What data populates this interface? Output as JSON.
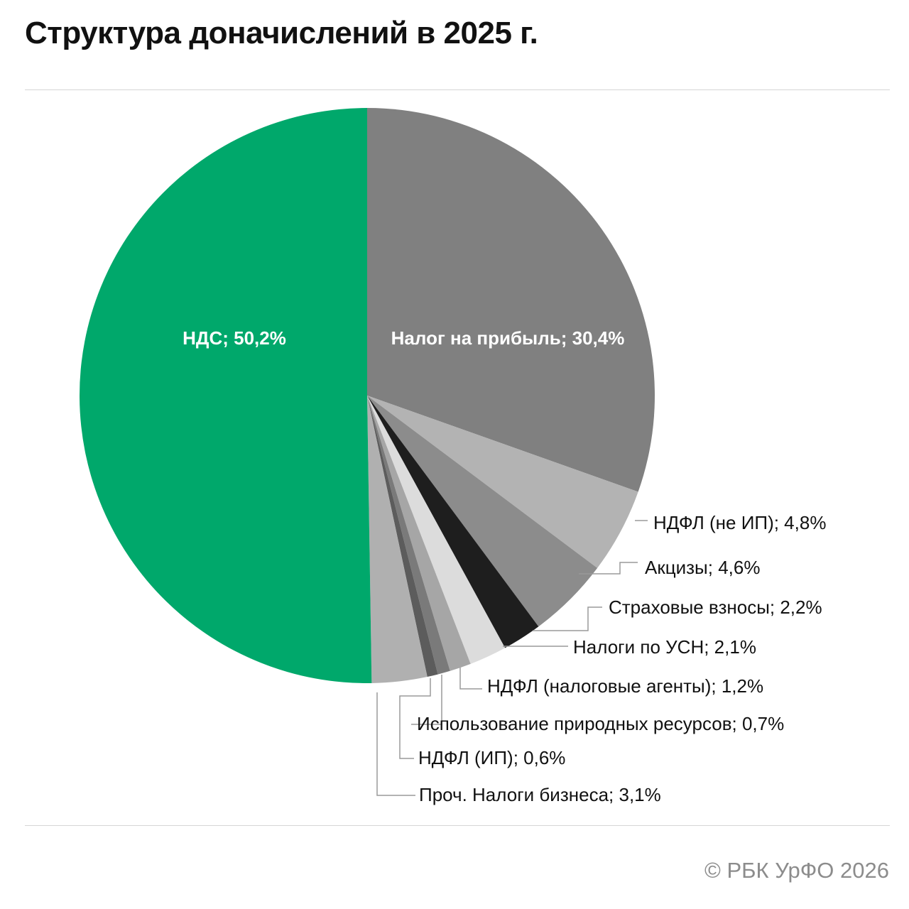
{
  "title": "Структура доначислений в 2025 г.",
  "copyright": "© РБК УрФО 2026",
  "chart_data": {
    "type": "pie",
    "start_angle_deg": 0,
    "direction": "clockwise",
    "slices": [
      {
        "label": "Налог на прибыль; 30,4%",
        "value": 30.4,
        "color": "#808080",
        "label_style": "inside"
      },
      {
        "label": "НДФЛ (не ИП); 4,8%",
        "value": 4.8,
        "color": "#b3b3b3",
        "label_style": "outside"
      },
      {
        "label": "Акцизы; 4,6%",
        "value": 4.6,
        "color": "#8c8c8c",
        "label_style": "outside"
      },
      {
        "label": "Страховые взносы; 2,2%",
        "value": 2.2,
        "color": "#1e1e1e",
        "label_style": "outside"
      },
      {
        "label": "Налоги по УСН; 2,1%",
        "value": 2.1,
        "color": "#dcdcdc",
        "label_style": "outside"
      },
      {
        "label": "НДФЛ (налоговые агенты); 1,2%",
        "value": 1.2,
        "color": "#a6a6a6",
        "label_style": "outside"
      },
      {
        "label": "Использование природных ресурсов; 0,7%",
        "value": 0.7,
        "color": "#7a7a7a",
        "label_style": "outside"
      },
      {
        "label": "НДФЛ (ИП); 0,6%",
        "value": 0.6,
        "color": "#5c5c5c",
        "label_style": "outside"
      },
      {
        "label": "Проч. Налоги бизнеса; 3,1%",
        "value": 3.1,
        "color": "#b0b0b0",
        "label_style": "outside"
      },
      {
        "label": "НДС; 50,2%",
        "value": 50.2,
        "color": "#00a86b",
        "label_style": "inside"
      }
    ]
  }
}
